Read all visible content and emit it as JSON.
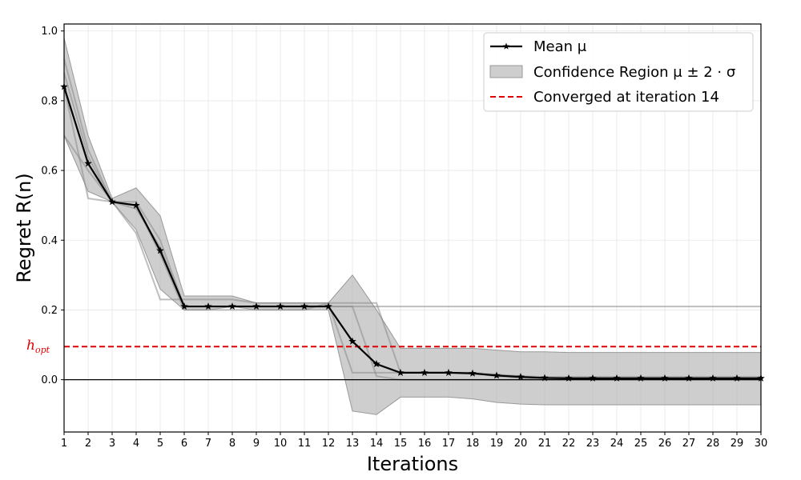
{
  "colors": {
    "mean": "#000000",
    "band": "#b3b3b3",
    "runs": "#8a8a8a",
    "converged": "#e00000",
    "hopt_label": "#e00000",
    "grid": "#e6e6e6"
  },
  "chart_data": {
    "type": "line",
    "xlabel": "Iterations",
    "ylabel": "Regret R(n)",
    "xlim": [
      1,
      30
    ],
    "ylim": [
      -0.15,
      1.02
    ],
    "x_ticks": [
      1,
      2,
      3,
      4,
      5,
      6,
      7,
      8,
      9,
      10,
      11,
      12,
      13,
      14,
      15,
      16,
      17,
      18,
      19,
      20,
      21,
      22,
      23,
      24,
      25,
      26,
      27,
      28,
      29,
      30
    ],
    "y_ticks": [
      "1.0",
      "0.8",
      "0.6",
      "0.4",
      "0.2",
      "0.0"
    ],
    "y_tick_values": [
      1.0,
      0.8,
      0.6,
      0.4,
      0.2,
      0.0
    ],
    "grid": true,
    "legend_position": "top-right",
    "legend": {
      "mean": "Mean   μ",
      "band": "Confidence Region μ ± 2 · σ",
      "converged": "Converged at iteration 14"
    },
    "x": [
      1,
      2,
      3,
      4,
      5,
      6,
      7,
      8,
      9,
      10,
      11,
      12,
      13,
      14,
      15,
      16,
      17,
      18,
      19,
      20,
      21,
      22,
      23,
      24,
      25,
      26,
      27,
      28,
      29,
      30
    ],
    "mean": [
      0.84,
      0.62,
      0.51,
      0.5,
      0.37,
      0.21,
      0.21,
      0.21,
      0.21,
      0.21,
      0.21,
      0.21,
      0.11,
      0.045,
      0.02,
      0.02,
      0.02,
      0.018,
      0.012,
      0.008,
      0.005,
      0.004,
      0.004,
      0.004,
      0.004,
      0.004,
      0.004,
      0.004,
      0.004,
      0.004
    ],
    "band_upper": [
      0.98,
      0.7,
      0.52,
      0.55,
      0.47,
      0.24,
      0.24,
      0.24,
      0.22,
      0.22,
      0.22,
      0.22,
      0.3,
      0.2,
      0.09,
      0.09,
      0.09,
      0.09,
      0.085,
      0.08,
      0.08,
      0.078,
      0.078,
      0.078,
      0.078,
      0.078,
      0.078,
      0.078,
      0.078,
      0.078
    ],
    "band_lower": [
      0.7,
      0.54,
      0.51,
      0.43,
      0.26,
      0.2,
      0.2,
      0.21,
      0.2,
      0.2,
      0.2,
      0.2,
      -0.09,
      -0.1,
      -0.05,
      -0.05,
      -0.05,
      -0.055,
      -0.065,
      -0.07,
      -0.072,
      -0.072,
      -0.072,
      -0.072,
      -0.072,
      -0.072,
      -0.072,
      -0.072,
      -0.072,
      -0.072
    ],
    "runs": [
      [
        0.84,
        0.52,
        0.51,
        0.42,
        0.23,
        0.23,
        0.23,
        0.23,
        0.22,
        0.22,
        0.22,
        0.22,
        0.02,
        0.02,
        0.02,
        0.02,
        0.02,
        0.02,
        0.01,
        0.005,
        0.002,
        0.002,
        0.002,
        0.002,
        0.002,
        0.002,
        0.002,
        0.002,
        0.002,
        0.002
      ],
      [
        0.7,
        0.6,
        0.51,
        0.49,
        0.38,
        0.21,
        0.21,
        0.21,
        0.21,
        0.21,
        0.21,
        0.21,
        0.21,
        0.21,
        0.21,
        0.21,
        0.21,
        0.21,
        0.21,
        0.21,
        0.21,
        0.21,
        0.21,
        0.21,
        0.21,
        0.21,
        0.21,
        0.21,
        0.21,
        0.21
      ],
      [
        0.92,
        0.66,
        0.51,
        0.51,
        0.4,
        0.21,
        0.21,
        0.21,
        0.21,
        0.21,
        0.21,
        0.21,
        0.21,
        0.01,
        0.0,
        0.0,
        0.0,
        0.0,
        0.0,
        0.0,
        0.0,
        0.0,
        0.0,
        0.0,
        0.0,
        0.0,
        0.0,
        0.0,
        0.0,
        0.0
      ],
      [
        0.88,
        0.64,
        0.51,
        0.5,
        0.36,
        0.2,
        0.2,
        0.2,
        0.2,
        0.2,
        0.2,
        0.22,
        0.22,
        0.22,
        0.02,
        0.02,
        0.02,
        0.02,
        0.015,
        0.01,
        0.008,
        0.008,
        0.008,
        0.008,
        0.008,
        0.008,
        0.008,
        0.008,
        0.008,
        0.008
      ]
    ],
    "converged_level": 0.095,
    "hopt_label": {
      "main": "h",
      "sub": "opt"
    }
  }
}
